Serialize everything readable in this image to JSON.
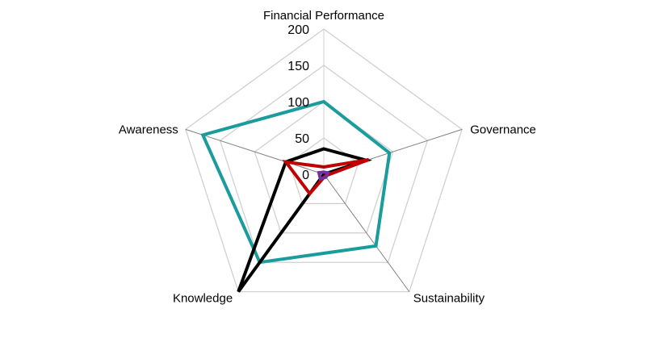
{
  "chart_data": {
    "type": "radar",
    "axes": [
      "Financial Performance",
      "Governance",
      "Sustainability",
      "Knowledge",
      "Awareness"
    ],
    "rlim": [
      0,
      200
    ],
    "ticks": [
      0,
      50,
      100,
      150,
      200
    ],
    "grid": true,
    "legend": "none",
    "series": [
      {
        "color": "#1a9c9c",
        "values": [
          100,
          95,
          122,
          150,
          175
        ]
      },
      {
        "color": "#000000",
        "values": [
          35,
          62,
          0,
          200,
          55
        ]
      },
      {
        "color": "#c00000",
        "values": [
          10,
          65,
          3,
          33,
          55
        ]
      },
      {
        "color": "#7030a0",
        "values": [
          3,
          6,
          5,
          8,
          7
        ]
      }
    ],
    "colors": {
      "grid": "#d0d0d0",
      "spoke": "#808080"
    }
  }
}
